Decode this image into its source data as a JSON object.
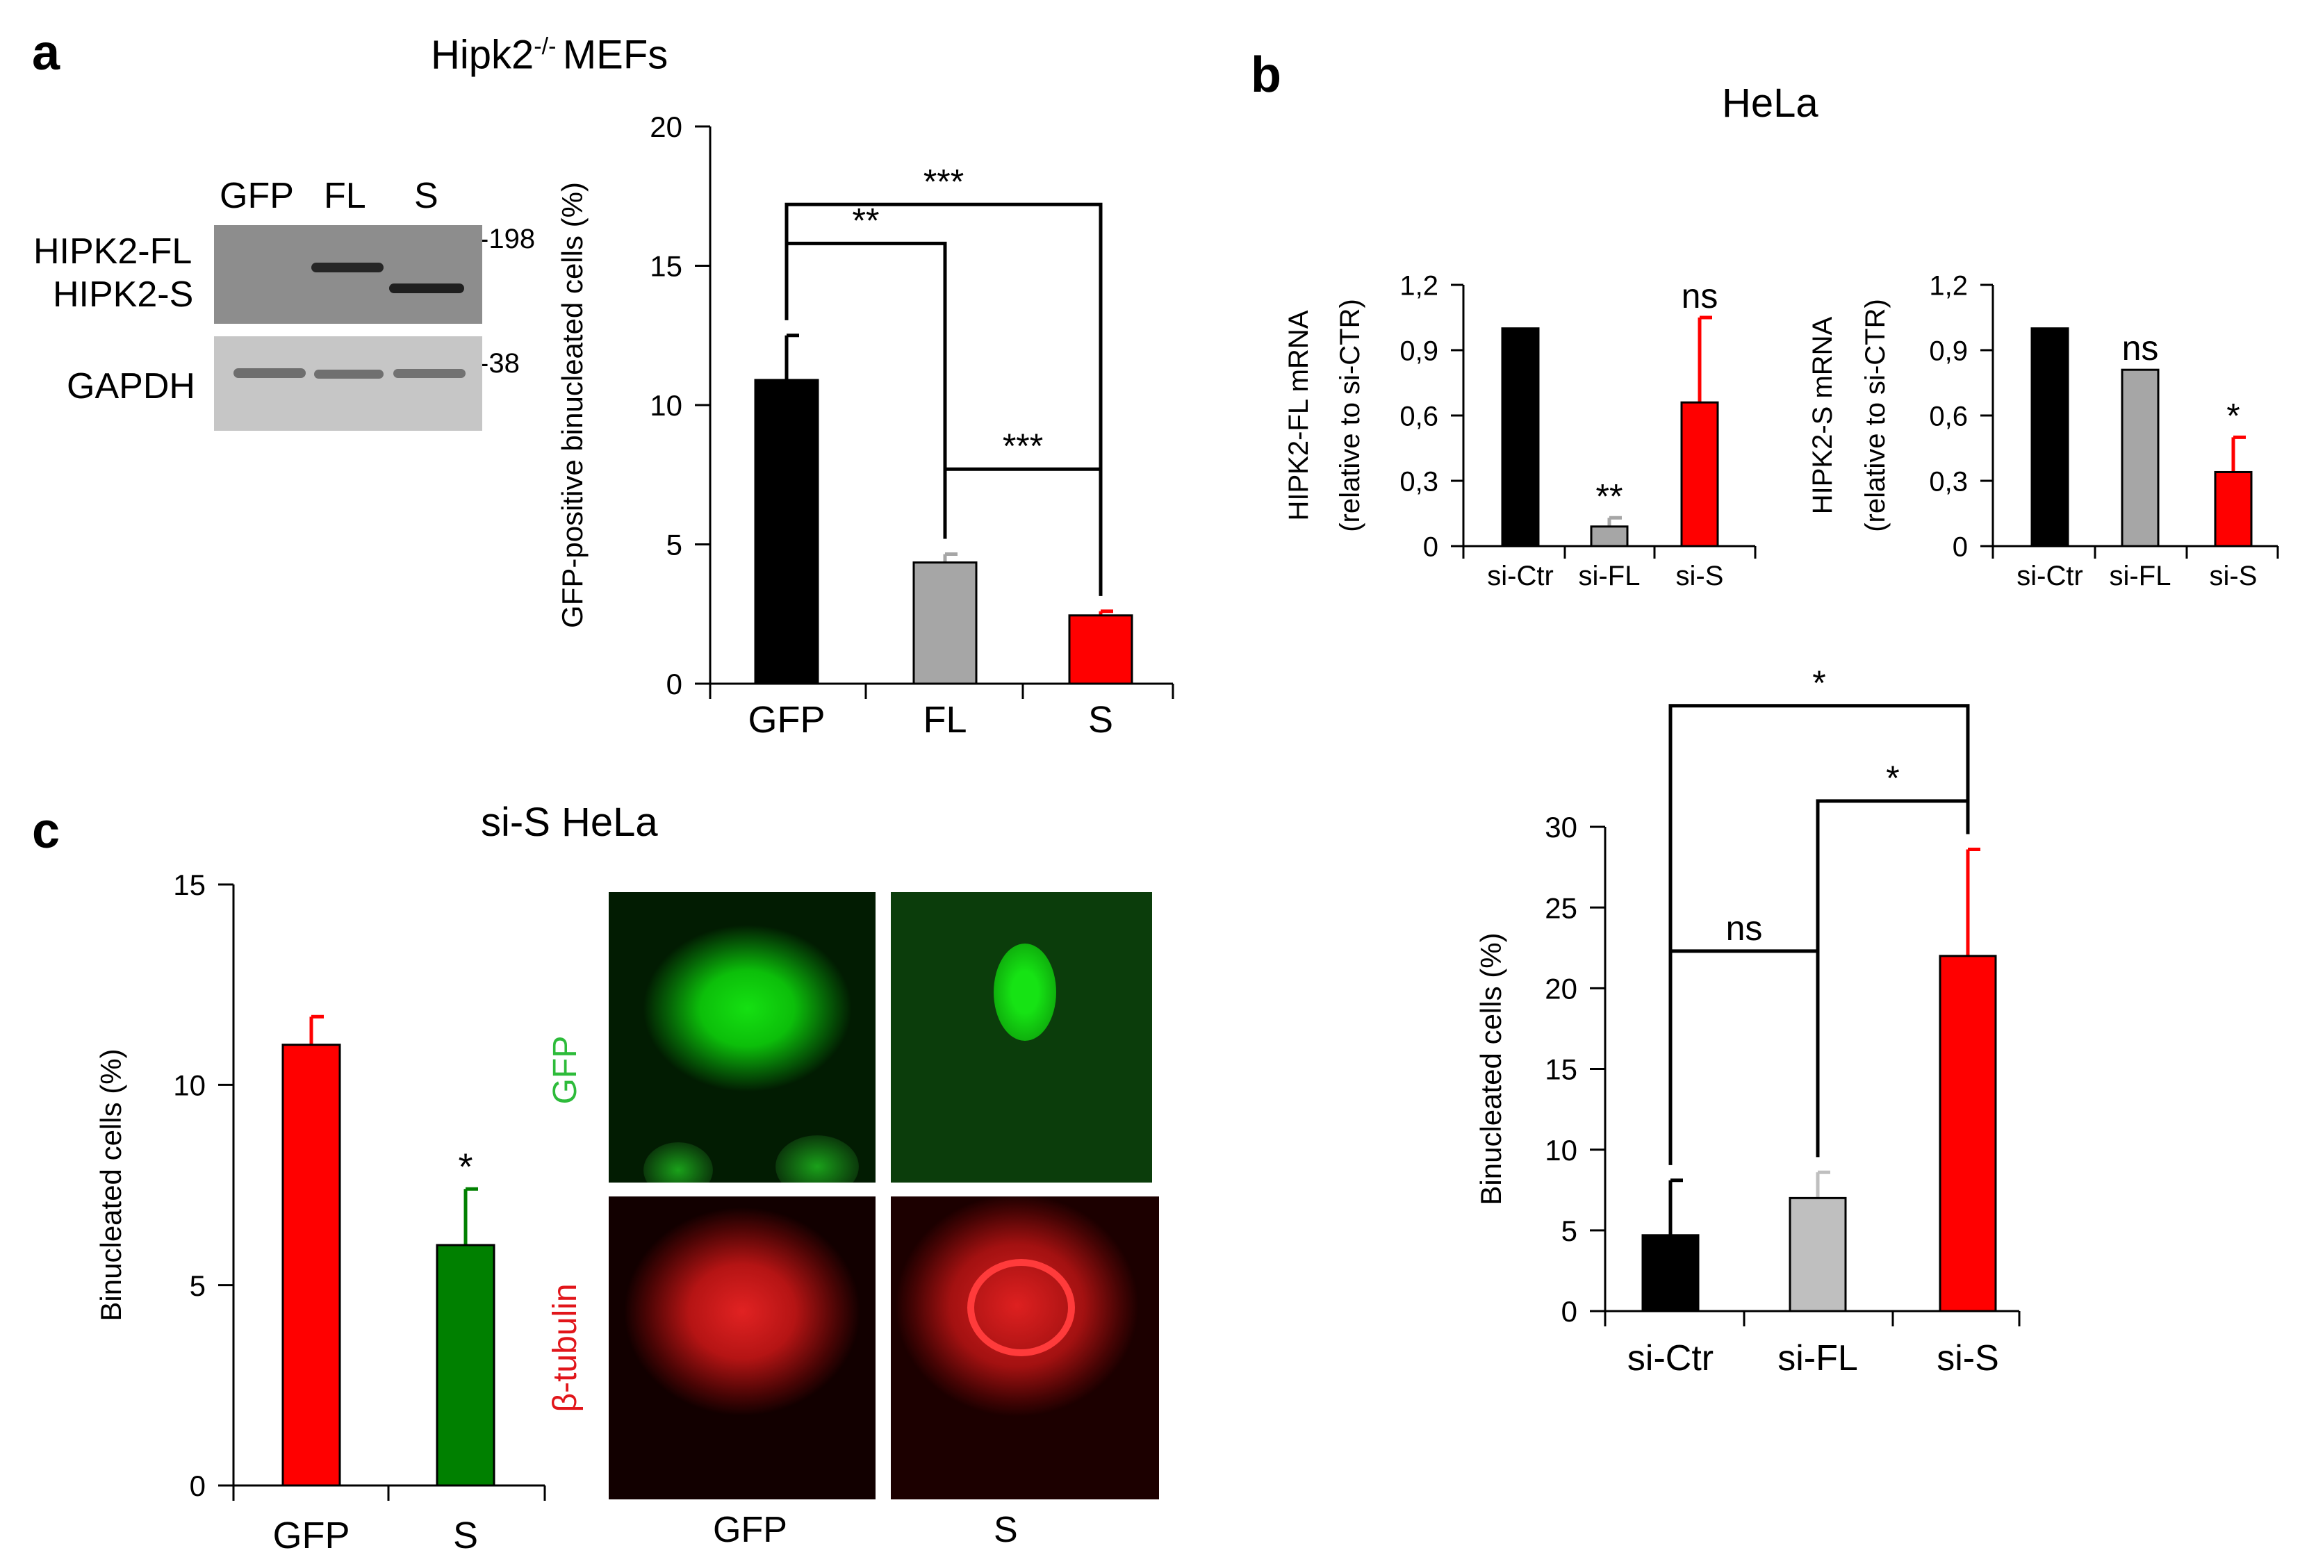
{
  "panels": {
    "a": {
      "label": "a",
      "title": "Hipk2",
      "title_sup": "-/- ",
      "title_suffix": "MEFs"
    },
    "b": {
      "label": "b",
      "title": "HeLa"
    },
    "c": {
      "label": "c",
      "title": "si-S HeLa"
    }
  },
  "blot": {
    "lanes": [
      "GFP",
      "FL",
      "S"
    ],
    "rows": [
      "HIPK2-FL",
      "HIPK2-S",
      "GAPDH"
    ],
    "mw_markers": [
      "198",
      "38"
    ]
  },
  "micrographs": {
    "channels": [
      "GFP",
      "β-tubulin"
    ],
    "columns": [
      "GFP",
      "S"
    ],
    "colors": {
      "green": "#2dbb3a",
      "red": "#e1151a"
    }
  },
  "chart_data": [
    {
      "id": "a-bar",
      "type": "bar",
      "categories": [
        "GFP",
        "FL",
        "S"
      ],
      "values": [
        10.9,
        4.35,
        2.45
      ],
      "errors": [
        1.6,
        0.3,
        0.15
      ],
      "colors": [
        "#000000",
        "#a6a6a6",
        "#ff0000"
      ],
      "ylabel": "GFP-positive binucleated cells (%)",
      "ylim": [
        0,
        20
      ],
      "yticks": [
        "0",
        "5",
        "10",
        "15",
        "20"
      ],
      "significance": [
        {
          "from": 0,
          "to": 2,
          "label": "***",
          "y": 17.2
        },
        {
          "from": 0,
          "to": 1,
          "label": "**",
          "y": 15.8
        },
        {
          "from": 1,
          "to": 2,
          "label": "***",
          "y": 7.7
        }
      ]
    },
    {
      "id": "b-fl-mrna",
      "type": "bar",
      "categories": [
        "si-Ctr",
        "si-FL",
        "si-S"
      ],
      "values": [
        1.0,
        0.09,
        0.66
      ],
      "errors": [
        0.0,
        0.04,
        0.39
      ],
      "colors": [
        "#000000",
        "#a6a6a6",
        "#ff0000"
      ],
      "ylabel": "HIPK2-FL mRNA",
      "ylabel2": "(relative to si-CTR)",
      "ylim": [
        0,
        1.2
      ],
      "yticks": [
        "0",
        "0,3",
        "0,6",
        "0,9",
        "1,2"
      ],
      "annotations": [
        null,
        "**",
        "ns"
      ]
    },
    {
      "id": "b-s-mrna",
      "type": "bar",
      "categories": [
        "si-Ctr",
        "si-FL",
        "si-S"
      ],
      "values": [
        1.0,
        0.81,
        0.34
      ],
      "errors": [
        0.0,
        0.0,
        0.16
      ],
      "colors": [
        "#000000",
        "#a6a6a6",
        "#ff0000"
      ],
      "ylabel": "HIPK2-S mRNA",
      "ylabel2": "(relative to si-CTR)",
      "ylim": [
        0,
        1.2
      ],
      "yticks": [
        "0",
        "0,3",
        "0,6",
        "0,9",
        "1,2"
      ],
      "annotations": [
        null,
        "ns",
        "*"
      ]
    },
    {
      "id": "b-binucleated",
      "type": "bar",
      "categories": [
        "si-Ctr",
        "si-FL",
        "si-S"
      ],
      "values": [
        4.7,
        7.0,
        22.0
      ],
      "errors": [
        3.4,
        1.6,
        6.6
      ],
      "colors": [
        "#000000",
        "#bfbfbf",
        "#ff0000"
      ],
      "ylabel": "Binucleated cells (%)",
      "ylim": [
        0,
        30
      ],
      "yticks": [
        "0",
        "5",
        "10",
        "15",
        "20",
        "25",
        "30"
      ],
      "significance": [
        {
          "from": 0,
          "to": 2,
          "label": "*",
          "y": 37.5
        },
        {
          "from": 1,
          "to": 2,
          "label": "*",
          "y": 31.6
        },
        {
          "from": 0,
          "to": 1,
          "label": "ns",
          "y": 22.3
        }
      ]
    },
    {
      "id": "c-bar",
      "type": "bar",
      "categories": [
        "GFP",
        "S"
      ],
      "values": [
        11.0,
        6.0
      ],
      "errors": [
        0.7,
        1.4
      ],
      "colors": [
        "#ff0000",
        "#008000"
      ],
      "ylabel": "Binucleated cells (%)",
      "ylim": [
        0,
        15
      ],
      "yticks": [
        "0",
        "5",
        "10",
        "15"
      ],
      "annotations": [
        null,
        "*"
      ]
    }
  ]
}
